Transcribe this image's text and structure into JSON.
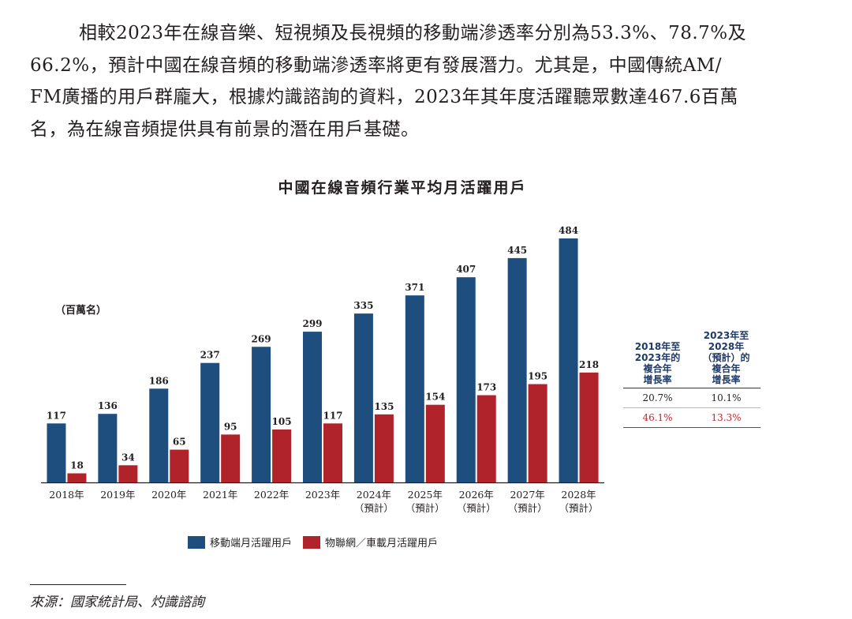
{
  "paragraph": {
    "lines": [
      "相較2023年在線音樂、短視頻及長視頻的移動端滲透率分別為53.3%、78.7%及",
      "66.2%，預計中國在線音頻的移動端滲透率將更有發展潛力。尤其是，中國傳統AM/",
      "FM廣播的用戶群龐大，根據灼識諮詢的資料，2023年其年度活躍聽眾數達467.6百萬",
      "名，為在線音頻提供具有前景的潛在用戶基礎。"
    ]
  },
  "chart_data": {
    "type": "bar",
    "title": "中國在線音頻行業平均月活躍用戶",
    "ylabel": "（百萬名）",
    "categories": [
      [
        "2018年"
      ],
      [
        "2019年"
      ],
      [
        "2020年"
      ],
      [
        "2021年"
      ],
      [
        "2022年"
      ],
      [
        "2023年"
      ],
      [
        "2024年",
        "（預計）"
      ],
      [
        "2025年",
        "（預計）"
      ],
      [
        "2026年",
        "（預計）"
      ],
      [
        "2027年",
        "（預計）"
      ],
      [
        "2028年",
        "（預計）"
      ]
    ],
    "series": [
      {
        "name": "移動端月活躍用戶",
        "color": "#1d4e7e",
        "values": [
          117,
          136,
          186,
          237,
          269,
          299,
          335,
          371,
          407,
          445,
          484
        ]
      },
      {
        "name": "物聯網／車載月活躍用戶",
        "color": "#b0232a",
        "values": [
          18,
          34,
          65,
          95,
          105,
          117,
          135,
          154,
          173,
          195,
          218
        ]
      }
    ],
    "ylim": [
      0,
      500
    ],
    "grid": false,
    "legend_position": "bottom",
    "cagr_table": {
      "headers": [
        [
          "2018年至",
          "2023年的",
          "複合年",
          "增長率"
        ],
        [
          "2023年至",
          "2028年",
          "（預計）的",
          "複合年",
          "增長率"
        ]
      ],
      "rows": [
        {
          "series": "移動端月活躍用戶",
          "values": [
            "20.7%",
            "10.1%"
          ]
        },
        {
          "series": "物聯網／車載月活躍用戶",
          "values": [
            "46.1%",
            "13.3%"
          ]
        }
      ]
    }
  },
  "source": "來源：國家統計局、灼識諮詢"
}
